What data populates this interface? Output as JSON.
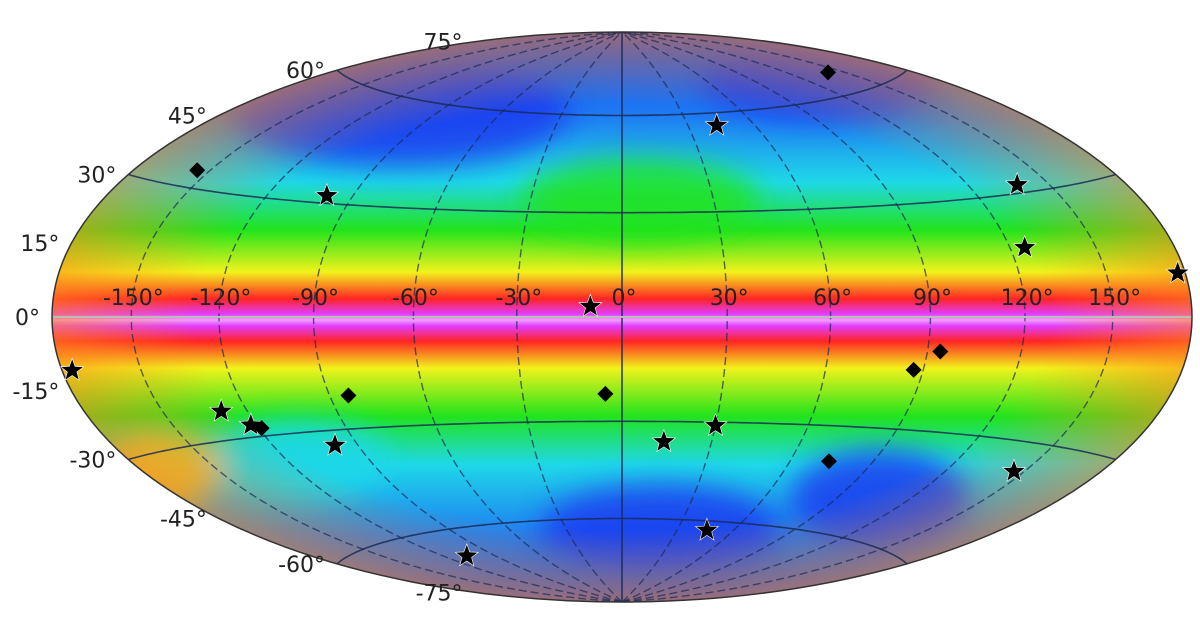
{
  "projection": "hammer-aitoff",
  "colormap": "rainbow",
  "colors": {
    "low": "#1a3cf0",
    "mid_low": "#1fd8e8",
    "mid": "#22e31c",
    "mid_high": "#f2f21c",
    "high": "#ff2424",
    "peak": "#e23cff",
    "graticule": "#1a2a55",
    "marker": "#000000"
  },
  "longitude_labels": [
    "-150°",
    "-120°",
    "-90°",
    "-60°",
    "-30°",
    "0°",
    "30°",
    "60°",
    "90°",
    "120°",
    "150°"
  ],
  "latitude_labels": [
    "75°",
    "60°",
    "45°",
    "30°",
    "15°",
    "0°",
    "-15°",
    "-30°",
    "-45°",
    "-60°",
    "-75°"
  ],
  "markers": [
    {
      "symbol": "diamond",
      "lon": 142,
      "lat": 66
    },
    {
      "symbol": "diamond",
      "lon": -155,
      "lat": 34
    },
    {
      "symbol": "star",
      "lon": -99,
      "lat": 32
    },
    {
      "symbol": "star",
      "lon": 43,
      "lat": 56
    },
    {
      "symbol": "star",
      "lon": 138,
      "lat": 32
    },
    {
      "symbol": "star",
      "lon": 125,
      "lat": 17
    },
    {
      "symbol": "star",
      "lon": 177,
      "lat": 9
    },
    {
      "symbol": "star",
      "lon": -9,
      "lat": 3
    },
    {
      "symbol": "star",
      "lon": -176,
      "lat": -11
    },
    {
      "symbol": "diamond",
      "lon": 94,
      "lat": -9
    },
    {
      "symbol": "diamond",
      "lon": 87,
      "lat": -14
    },
    {
      "symbol": "star",
      "lon": -129,
      "lat": -23
    },
    {
      "symbol": "star",
      "lon": -122,
      "lat": -27
    },
    {
      "symbol": "diamond",
      "lon": -119,
      "lat": -28
    },
    {
      "symbol": "diamond",
      "lon": -84,
      "lat": -21
    },
    {
      "symbol": "diamond",
      "lon": -5,
      "lat": -22
    },
    {
      "symbol": "star",
      "lon": -98,
      "lat": -34
    },
    {
      "symbol": "star",
      "lon": 30,
      "lat": -31
    },
    {
      "symbol": "star",
      "lon": 14,
      "lat": -36
    },
    {
      "symbol": "diamond",
      "lon": 74,
      "lat": -40
    },
    {
      "symbol": "star",
      "lon": 146,
      "lat": -37
    },
    {
      "symbol": "star",
      "lon": 46,
      "lat": -63
    },
    {
      "symbol": "star",
      "lon": -107,
      "lat": -68
    }
  ]
}
